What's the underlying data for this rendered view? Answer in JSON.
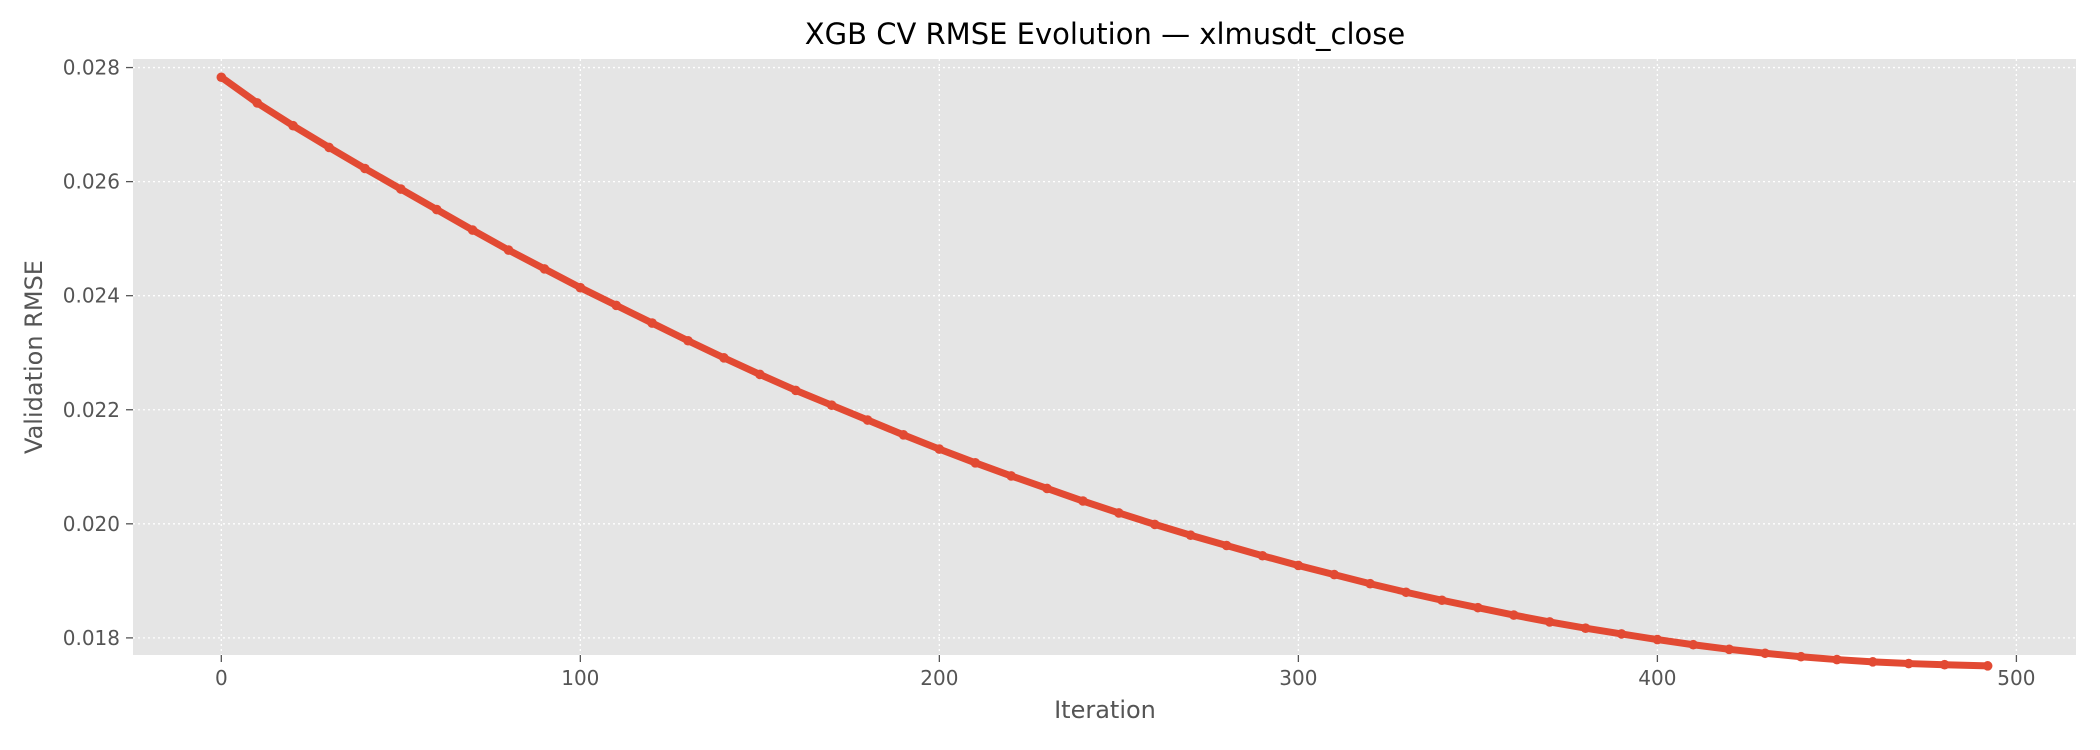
{
  "chart_data": {
    "type": "line",
    "title": "XGB CV RMSE Evolution — xlmusdt_close",
    "xlabel": "Iteration",
    "ylabel": "Validation RMSE",
    "xlim": [
      -24.6,
      516.6
    ],
    "ylim": [
      0.0177,
      0.02815
    ],
    "x_ticks": [
      0,
      100,
      200,
      300,
      400,
      500
    ],
    "y_ticks": [
      0.018,
      0.02,
      0.022,
      0.024,
      0.026,
      0.028
    ],
    "x_tick_labels": [
      "0",
      "100",
      "200",
      "300",
      "400",
      "500"
    ],
    "y_tick_labels": [
      "0.018",
      "0.020",
      "0.022",
      "0.024",
      "0.026",
      "0.028"
    ],
    "grid": true,
    "legend": "none",
    "series": [
      {
        "color": "#e24a33",
        "marker": "circle",
        "x": [
          0,
          10,
          20,
          30,
          40,
          50,
          60,
          70,
          80,
          90,
          100,
          110,
          120,
          130,
          140,
          150,
          160,
          170,
          180,
          190,
          200,
          210,
          220,
          230,
          240,
          250,
          260,
          270,
          280,
          290,
          300,
          310,
          320,
          330,
          340,
          350,
          360,
          370,
          380,
          390,
          400,
          410,
          420,
          430,
          440,
          450,
          460,
          470,
          480,
          492
        ],
        "values": [
          0.02783,
          0.02738,
          0.02698,
          0.0266,
          0.02623,
          0.02587,
          0.02551,
          0.02515,
          0.0248,
          0.02447,
          0.02414,
          0.02383,
          0.02352,
          0.02321,
          0.02291,
          0.02262,
          0.02234,
          0.02208,
          0.02182,
          0.02156,
          0.02131,
          0.02107,
          0.02084,
          0.02062,
          0.0204,
          0.02019,
          0.01999,
          0.0198,
          0.01962,
          0.01944,
          0.01927,
          0.01911,
          0.01895,
          0.0188,
          0.01866,
          0.01853,
          0.0184,
          0.01828,
          0.01817,
          0.01807,
          0.01797,
          0.01788,
          0.0178,
          0.01773,
          0.01767,
          0.01762,
          0.01758,
          0.01755,
          0.01753,
          0.01751
        ]
      }
    ]
  }
}
